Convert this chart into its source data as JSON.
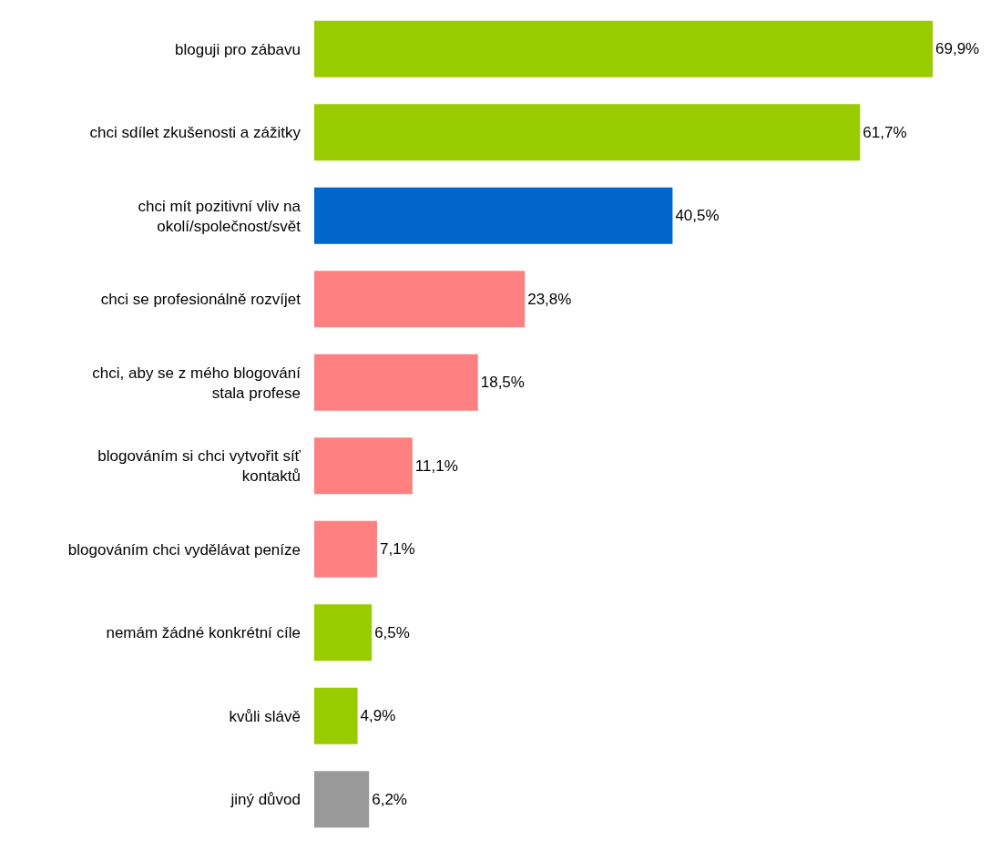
{
  "chart_data": {
    "type": "bar",
    "orientation": "horizontal",
    "categories": [
      "bloguji pro zábavu",
      "chci sdílet zkušenosti a zážitky",
      "chci mít pozitivní vliv na okolí/společnost/svět",
      "chci se profesionálně rozvíjet",
      "chci, aby se z mého blogování stala profese",
      "blogováním si chci vytvořit síť kontaktů",
      "blogováním chci vydělávat peníze",
      "nemám žádné konkrétní cíle",
      "kvůli slávě",
      "jiný důvod"
    ],
    "values": [
      69.9,
      61.7,
      40.5,
      23.8,
      18.5,
      11.1,
      7.1,
      6.5,
      4.9,
      6.2
    ],
    "value_labels": [
      "69,9%",
      "61,7%",
      "40,5%",
      "23,8%",
      "18,5%",
      "11,1%",
      "7,1%",
      "6,5%",
      "4,9%",
      "6,2%"
    ],
    "colors": [
      "#99cc00",
      "#99cc00",
      "#0066cc",
      "#ff8080",
      "#ff8080",
      "#ff8080",
      "#ff8080",
      "#99cc00",
      "#99cc00",
      "#999999"
    ]
  }
}
